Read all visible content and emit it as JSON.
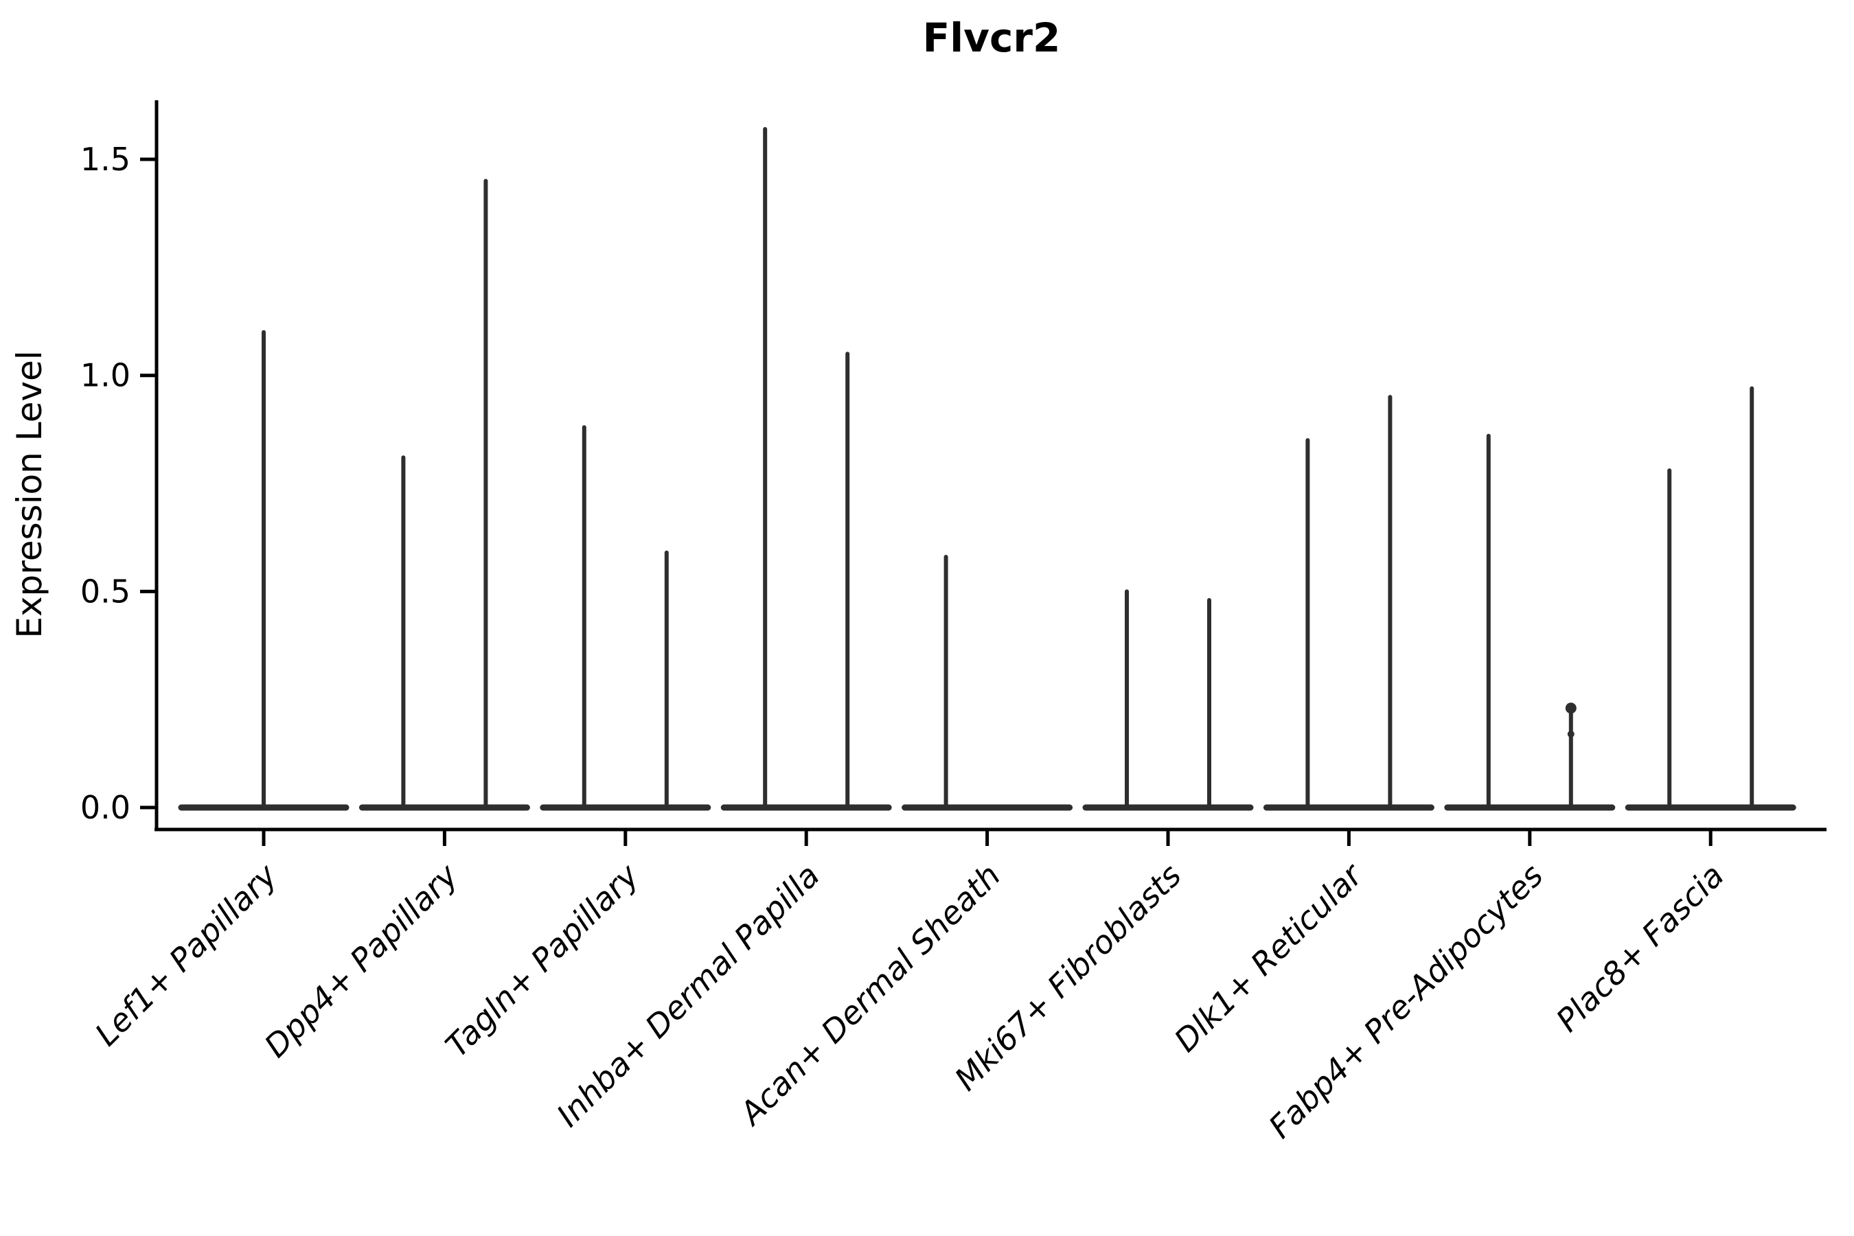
{
  "chart_data": {
    "type": "violin",
    "title": "Flvcr2",
    "ylabel": "Expression Level",
    "xlabel": "",
    "ylim": [
      -0.08,
      1.68
    ],
    "yticks": [
      0.0,
      0.5,
      1.0,
      1.5
    ],
    "ytick_labels": [
      "0.0",
      "0.5",
      "1.0",
      "1.5"
    ],
    "grid": false,
    "legend_position": "none",
    "categories": [
      "Lef1+ Papillary",
      "Dpp4+ Papillary",
      "Tagln+ Papillary",
      "Inhba+ Dermal Papilla",
      "Acan+ Dermal Sheath",
      "Mki67+ Fibroblasts",
      "Dlk1+ Reticular",
      "Fabp4+ Pre-Adipocytes",
      "Plac8+ Fascia"
    ],
    "groups": [
      {
        "label": "Lef1+ Papillary",
        "violins": [
          {
            "side": "center",
            "max": 1.1
          }
        ]
      },
      {
        "label": "Dpp4+ Papillary",
        "violins": [
          {
            "side": "left",
            "max": 0.81
          },
          {
            "side": "right",
            "max": 1.45
          }
        ]
      },
      {
        "label": "Tagln+ Papillary",
        "violins": [
          {
            "side": "left",
            "max": 0.88
          },
          {
            "side": "right",
            "max": 0.59
          }
        ]
      },
      {
        "label": "Inhba+ Dermal Papilla",
        "violins": [
          {
            "side": "left",
            "max": 1.57
          },
          {
            "side": "right",
            "max": 1.05
          }
        ]
      },
      {
        "label": "Acan+ Dermal Sheath",
        "violins": [
          {
            "side": "left",
            "max": 0.58
          }
        ]
      },
      {
        "label": "Mki67+ Fibroblasts",
        "violins": [
          {
            "side": "left",
            "max": 0.5
          },
          {
            "side": "right",
            "max": 0.48
          }
        ]
      },
      {
        "label": "Dlk1+ Reticular",
        "violins": [
          {
            "side": "left",
            "max": 0.85
          },
          {
            "side": "right",
            "max": 0.95
          }
        ]
      },
      {
        "label": "Fabp4+ Pre-Adipocytes",
        "violins": [
          {
            "side": "left",
            "max": 0.86
          },
          {
            "side": "right",
            "max": 0.23,
            "dots": [
              0.23,
              0.17
            ]
          }
        ]
      },
      {
        "label": "Plac8+ Fascia",
        "violins": [
          {
            "side": "left",
            "max": 0.78
          },
          {
            "side": "right",
            "max": 0.97
          }
        ]
      }
    ],
    "colors": {
      "violin_stroke": "#2e2e2e",
      "axis": "#000000",
      "text": "#000000",
      "background": "#ffffff"
    }
  }
}
